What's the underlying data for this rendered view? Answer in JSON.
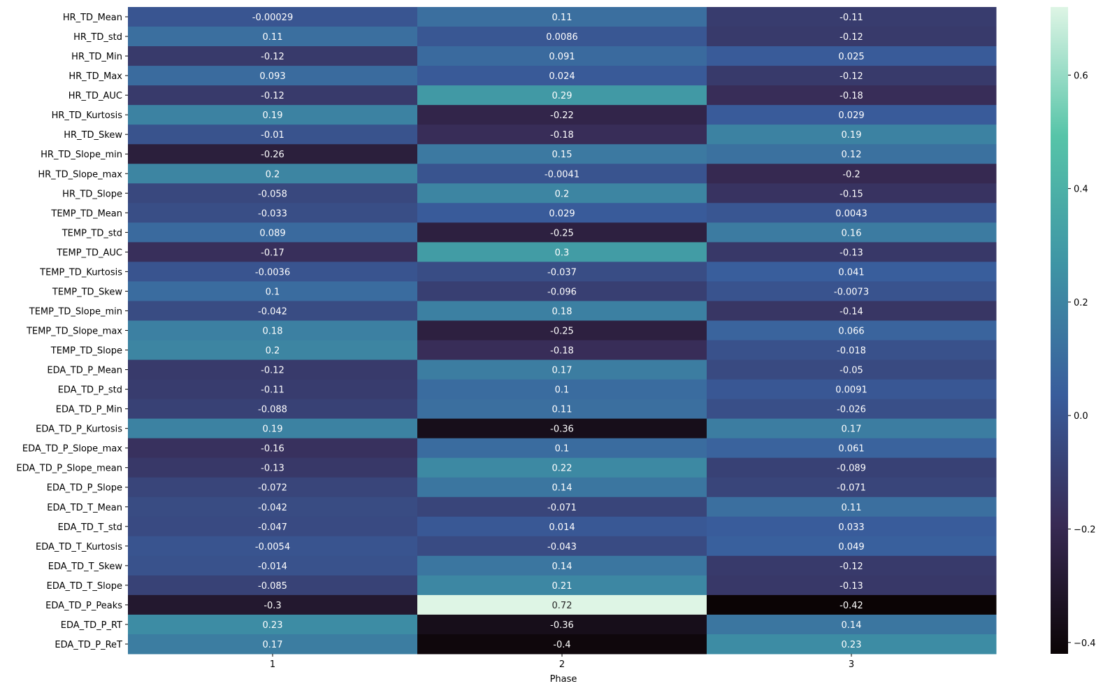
{
  "chart_data": {
    "type": "heatmap",
    "title": "",
    "xlabel": "Phase",
    "ylabel": "",
    "categories": [
      "1",
      "2",
      "3"
    ],
    "rows": [
      {
        "label": "HR_TD_Mean",
        "values": [
          -0.00029,
          0.11,
          -0.11
        ],
        "labels": [
          "-0.00029",
          "0.11",
          "-0.11"
        ]
      },
      {
        "label": "HR_TD_std",
        "values": [
          0.11,
          0.0086,
          -0.12
        ],
        "labels": [
          "0.11",
          "0.0086",
          "-0.12"
        ]
      },
      {
        "label": "HR_TD_Min",
        "values": [
          -0.12,
          0.091,
          0.025
        ],
        "labels": [
          "-0.12",
          "0.091",
          "0.025"
        ]
      },
      {
        "label": "HR_TD_Max",
        "values": [
          0.093,
          0.024,
          -0.12
        ],
        "labels": [
          "0.093",
          "0.024",
          "-0.12"
        ]
      },
      {
        "label": "HR_TD_AUC",
        "values": [
          -0.12,
          0.29,
          -0.18
        ],
        "labels": [
          "-0.12",
          "0.29",
          "-0.18"
        ]
      },
      {
        "label": "HR_TD_Kurtosis",
        "values": [
          0.19,
          -0.22,
          0.029
        ],
        "labels": [
          "0.19",
          "-0.22",
          "0.029"
        ]
      },
      {
        "label": "HR_TD_Skew",
        "values": [
          -0.01,
          -0.18,
          0.19
        ],
        "labels": [
          "-0.01",
          "-0.18",
          "0.19"
        ]
      },
      {
        "label": "HR_TD_Slope_min",
        "values": [
          -0.26,
          0.15,
          0.12
        ],
        "labels": [
          "-0.26",
          "0.15",
          "0.12"
        ]
      },
      {
        "label": "HR_TD_Slope_max",
        "values": [
          0.2,
          -0.0041,
          -0.2
        ],
        "labels": [
          "0.2",
          "-0.0041",
          "-0.2"
        ]
      },
      {
        "label": "HR_TD_Slope",
        "values": [
          -0.058,
          0.2,
          -0.15
        ],
        "labels": [
          "-0.058",
          "0.2",
          "-0.15"
        ]
      },
      {
        "label": "TEMP_TD_Mean",
        "values": [
          -0.033,
          0.029,
          0.0043
        ],
        "labels": [
          "-0.033",
          "0.029",
          "0.0043"
        ]
      },
      {
        "label": "TEMP_TD_std",
        "values": [
          0.089,
          -0.25,
          0.16
        ],
        "labels": [
          "0.089",
          "-0.25",
          "0.16"
        ]
      },
      {
        "label": "TEMP_TD_AUC",
        "values": [
          -0.17,
          0.3,
          -0.13
        ],
        "labels": [
          "-0.17",
          "0.3",
          "-0.13"
        ]
      },
      {
        "label": "TEMP_TD_Kurtosis",
        "values": [
          -0.0036,
          -0.037,
          0.041
        ],
        "labels": [
          "-0.0036",
          "-0.037",
          "0.041"
        ]
      },
      {
        "label": "TEMP_TD_Skew",
        "values": [
          0.1,
          -0.096,
          -0.0073
        ],
        "labels": [
          "0.1",
          "-0.096",
          "-0.0073"
        ]
      },
      {
        "label": "TEMP_TD_Slope_min",
        "values": [
          -0.042,
          0.18,
          -0.14
        ],
        "labels": [
          "-0.042",
          "0.18",
          "-0.14"
        ]
      },
      {
        "label": "TEMP_TD_Slope_max",
        "values": [
          0.18,
          -0.25,
          0.066
        ],
        "labels": [
          "0.18",
          "-0.25",
          "0.066"
        ]
      },
      {
        "label": "TEMP_TD_Slope",
        "values": [
          0.2,
          -0.18,
          -0.018
        ],
        "labels": [
          "0.2",
          "-0.18",
          "-0.018"
        ]
      },
      {
        "label": "EDA_TD_P_Mean",
        "values": [
          -0.12,
          0.17,
          -0.05
        ],
        "labels": [
          "-0.12",
          "0.17",
          "-0.05"
        ]
      },
      {
        "label": "EDA_TD_P_std",
        "values": [
          -0.11,
          0.1,
          0.0091
        ],
        "labels": [
          "-0.11",
          "0.1",
          "0.0091"
        ]
      },
      {
        "label": "EDA_TD_P_Min",
        "values": [
          -0.088,
          0.11,
          -0.026
        ],
        "labels": [
          "-0.088",
          "0.11",
          "-0.026"
        ]
      },
      {
        "label": "EDA_TD_P_Kurtosis",
        "values": [
          0.19,
          -0.36,
          0.17
        ],
        "labels": [
          "0.19",
          "-0.36",
          "0.17"
        ]
      },
      {
        "label": "EDA_TD_P_Slope_max",
        "values": [
          -0.16,
          0.1,
          0.061
        ],
        "labels": [
          "-0.16",
          "0.1",
          "0.061"
        ]
      },
      {
        "label": "EDA_TD_P_Slope_mean",
        "values": [
          -0.13,
          0.22,
          -0.089
        ],
        "labels": [
          "-0.13",
          "0.22",
          "-0.089"
        ]
      },
      {
        "label": "EDA_TD_P_Slope",
        "values": [
          -0.072,
          0.14,
          -0.071
        ],
        "labels": [
          "-0.072",
          "0.14",
          "-0.071"
        ]
      },
      {
        "label": "EDA_TD_T_Mean",
        "values": [
          -0.042,
          -0.071,
          0.11
        ],
        "labels": [
          "-0.042",
          "-0.071",
          "0.11"
        ]
      },
      {
        "label": "EDA_TD_T_std",
        "values": [
          -0.047,
          0.014,
          0.033
        ],
        "labels": [
          "-0.047",
          "0.014",
          "0.033"
        ]
      },
      {
        "label": "EDA_TD_T_Kurtosis",
        "values": [
          -0.0054,
          -0.043,
          0.049
        ],
        "labels": [
          "-0.0054",
          "-0.043",
          "0.049"
        ]
      },
      {
        "label": "EDA_TD_T_Skew",
        "values": [
          -0.014,
          0.14,
          -0.12
        ],
        "labels": [
          "-0.014",
          "0.14",
          "-0.12"
        ]
      },
      {
        "label": "EDA_TD_T_Slope",
        "values": [
          -0.085,
          0.21,
          -0.13
        ],
        "labels": [
          "-0.085",
          "0.21",
          "-0.13"
        ]
      },
      {
        "label": "EDA_TD_P_Peaks",
        "values": [
          -0.3,
          0.72,
          -0.42
        ],
        "labels": [
          "-0.3",
          "0.72",
          "-0.42"
        ]
      },
      {
        "label": "EDA_TD_P_RT",
        "values": [
          0.23,
          -0.36,
          0.14
        ],
        "labels": [
          "0.23",
          "-0.36",
          "0.14"
        ]
      },
      {
        "label": "EDA_TD_P_ReT",
        "values": [
          0.17,
          -0.4,
          0.23
        ],
        "labels": [
          "0.17",
          "-0.4",
          "0.23"
        ]
      }
    ],
    "colorbar": {
      "vmin": -0.42,
      "vmax": 0.72,
      "ticks": [
        -0.4,
        -0.2,
        0.0,
        0.2,
        0.4,
        0.6
      ],
      "tick_labels": [
        "−0.4",
        "−0.2",
        "0.0",
        "0.2",
        "0.4",
        "0.6"
      ],
      "colormap": [
        "#0b0405",
        "#382a54",
        "#395d9c",
        "#3e94a5",
        "#56c4a8",
        "#def5e5"
      ]
    },
    "grid": false,
    "legend": "colorbar-right"
  }
}
